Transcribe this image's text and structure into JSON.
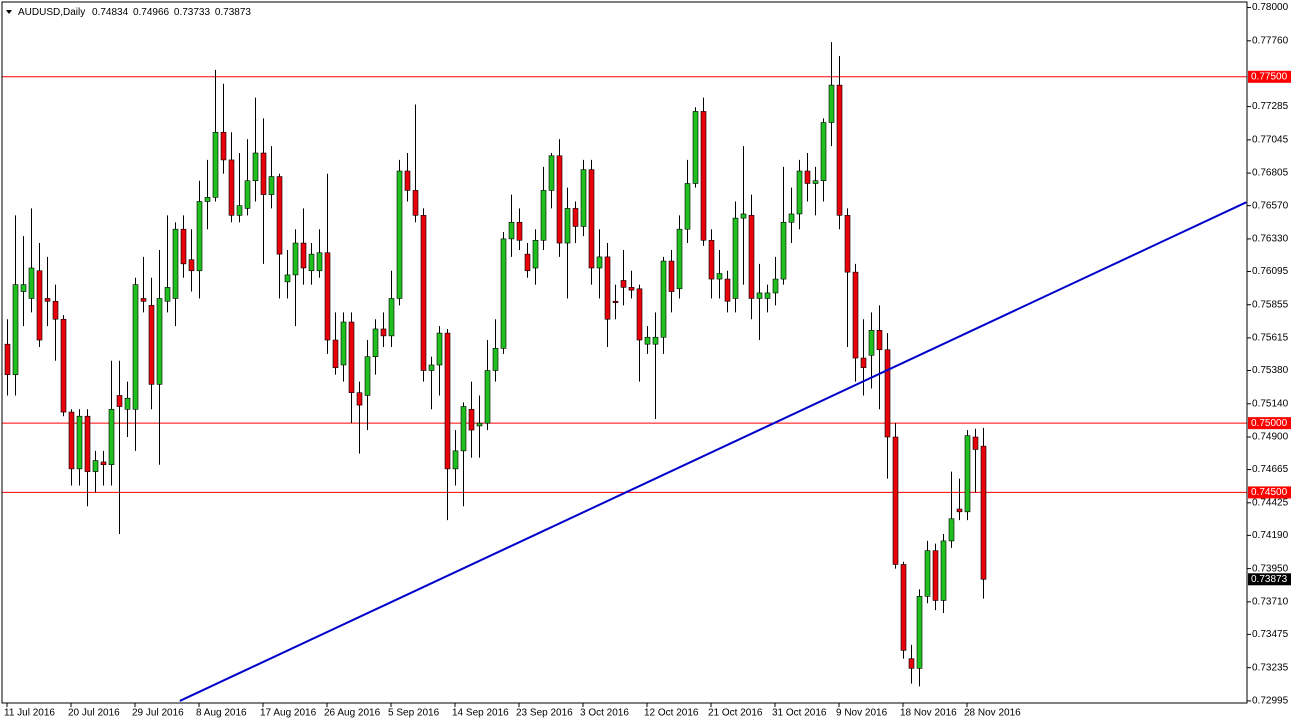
{
  "chart_data": {
    "type": "candlestick",
    "title": "AUDUSD,Daily",
    "categories": [
      "11 Jul 2016",
      null,
      null,
      null,
      null,
      null,
      null,
      null,
      "20 Jul 2016",
      null,
      null,
      null,
      null,
      null,
      null,
      null,
      "29 Jul 2016",
      null,
      null,
      null,
      null,
      null,
      null,
      null,
      "8 Aug 2016",
      null,
      null,
      null,
      null,
      null,
      null,
      null,
      "17 Aug 2016",
      null,
      null,
      null,
      null,
      null,
      null,
      null,
      "26 Aug 2016",
      null,
      null,
      null,
      null,
      null,
      null,
      null,
      "5 Sep 2016",
      null,
      null,
      null,
      null,
      null,
      null,
      null,
      "14 Sep 2016",
      null,
      null,
      null,
      null,
      null,
      null,
      null,
      "23 Sep 2016",
      null,
      null,
      null,
      null,
      null,
      null,
      null,
      "3 Oct 2016",
      null,
      null,
      null,
      null,
      null,
      null,
      null,
      "12 Oct 2016",
      null,
      null,
      null,
      null,
      null,
      null,
      null,
      "21 Oct 2016",
      null,
      null,
      null,
      null,
      null,
      null,
      null,
      "31 Oct 2016",
      null,
      null,
      null,
      null,
      null,
      null,
      null,
      "9 Nov 2016",
      null,
      null,
      null,
      null,
      null,
      null,
      null,
      "18 Nov 2016",
      null,
      null,
      null,
      null,
      null,
      null,
      null,
      "28 Nov 2016",
      null,
      null
    ],
    "open": [
      0.7557,
      0.7535,
      0.7595,
      0.759,
      0.761,
      0.759,
      0.7588,
      0.7575,
      0.7508,
      0.7467,
      0.7505,
      0.7465,
      0.7472,
      0.747,
      0.752,
      0.751,
      0.751,
      0.759,
      0.7585,
      0.7528,
      0.7588,
      0.759,
      0.764,
      0.7618,
      0.761,
      0.766,
      0.7663,
      0.771,
      0.769,
      0.765,
      0.7655,
      0.7675,
      0.7695,
      0.7665,
      0.7678,
      0.7602,
      0.7607,
      0.763,
      0.761,
      0.761,
      0.7623,
      0.756,
      0.7542,
      0.7573,
      0.7522,
      0.752,
      0.7548,
      0.7568,
      0.7563,
      0.759,
      0.7682,
      0.7668,
      0.765,
      0.7538,
      0.7542,
      0.7565,
      0.7467,
      0.748,
      0.751,
      0.7498,
      0.75,
      0.7538,
      0.7554,
      0.7633,
      0.7645,
      0.7622,
      0.7612,
      0.7632,
      0.7668,
      0.7693,
      0.763,
      0.7655,
      0.7642,
      0.7683,
      0.7612,
      0.762,
      0.7588,
      0.7603,
      0.7598,
      0.7597,
      0.7557,
      0.7557,
      0.7562,
      0.7617,
      0.7597,
      0.764,
      0.7673,
      0.7725,
      0.7632,
      0.7604,
      0.7604,
      0.759,
      0.7648,
      0.765,
      0.759,
      0.759,
      0.7594,
      0.7604,
      0.7645,
      0.7651,
      0.7682,
      0.7673,
      0.7675,
      0.7717,
      0.7744,
      0.765,
      0.7609,
      0.7547,
      0.7549,
      0.7567,
      0.7553,
      0.749,
      0.7398,
      0.733,
      0.7323,
      0.7375,
      0.7408,
      0.7372,
      0.7415,
      0.7438,
      0.7436,
      0.749,
      0.74834
    ],
    "high": [
      0.7575,
      0.765,
      0.7635,
      0.7655,
      0.763,
      0.762,
      0.76,
      0.7578,
      0.751,
      0.751,
      0.751,
      0.748,
      0.748,
      0.7545,
      0.7545,
      0.753,
      0.7605,
      0.762,
      0.7605,
      0.7625,
      0.765,
      0.7645,
      0.765,
      0.764,
      0.7675,
      0.769,
      0.7755,
      0.7745,
      0.771,
      0.7695,
      0.7705,
      0.7735,
      0.772,
      0.77,
      0.768,
      0.7625,
      0.764,
      0.7655,
      0.763,
      0.764,
      0.768,
      0.758,
      0.758,
      0.758,
      0.753,
      0.756,
      0.7575,
      0.758,
      0.761,
      0.769,
      0.7695,
      0.773,
      0.7655,
      0.7548,
      0.757,
      0.7568,
      0.7495,
      0.7515,
      0.753,
      0.752,
      0.756,
      0.7575,
      0.7638,
      0.7665,
      0.7655,
      0.763,
      0.764,
      0.7685,
      0.7695,
      0.7705,
      0.767,
      0.766,
      0.769,
      0.769,
      0.764,
      0.763,
      0.76,
      0.7625,
      0.761,
      0.76,
      0.757,
      0.758,
      0.762,
      0.7625,
      0.765,
      0.769,
      0.7728,
      0.7735,
      0.764,
      0.7625,
      0.761,
      0.766,
      0.77,
      0.7665,
      0.7615,
      0.76,
      0.762,
      0.7685,
      0.767,
      0.769,
      0.7695,
      0.7685,
      0.772,
      0.7775,
      0.7765,
      0.7655,
      0.7615,
      0.7575,
      0.758,
      0.7585,
      0.7565,
      0.75,
      0.74,
      0.734,
      0.738,
      0.7415,
      0.7413,
      0.742,
      0.7465,
      0.746,
      0.7495,
      0.7496,
      0.74966
    ],
    "low": [
      0.752,
      0.752,
      0.757,
      0.758,
      0.7555,
      0.757,
      0.7545,
      0.7505,
      0.7455,
      0.7455,
      0.744,
      0.745,
      0.7455,
      0.7455,
      0.742,
      0.749,
      0.748,
      0.758,
      0.751,
      0.747,
      0.758,
      0.757,
      0.7605,
      0.7595,
      0.759,
      0.764,
      0.766,
      0.768,
      0.7645,
      0.7645,
      0.765,
      0.766,
      0.7615,
      0.7655,
      0.759,
      0.759,
      0.757,
      0.76,
      0.76,
      0.7605,
      0.755,
      0.7535,
      0.753,
      0.75,
      0.7478,
      0.7495,
      0.7535,
      0.7555,
      0.7555,
      0.7585,
      0.766,
      0.7645,
      0.753,
      0.751,
      0.752,
      0.743,
      0.7455,
      0.744,
      0.7475,
      0.7475,
      0.7495,
      0.753,
      0.755,
      0.762,
      0.7625,
      0.7605,
      0.76,
      0.7625,
      0.7655,
      0.762,
      0.759,
      0.763,
      0.7635,
      0.76,
      0.759,
      0.7555,
      0.7575,
      0.7585,
      0.759,
      0.753,
      0.755,
      0.7503,
      0.755,
      0.758,
      0.759,
      0.763,
      0.767,
      0.7628,
      0.759,
      0.759,
      0.758,
      0.758,
      0.76,
      0.7575,
      0.756,
      0.758,
      0.7585,
      0.76,
      0.763,
      0.764,
      0.766,
      0.765,
      0.766,
      0.77,
      0.764,
      0.7555,
      0.753,
      0.752,
      0.7525,
      0.751,
      0.746,
      0.7395,
      0.733,
      0.7312,
      0.731,
      0.737,
      0.7365,
      0.7363,
      0.741,
      0.743,
      0.743,
      0.745,
      0.73733
    ],
    "close": [
      0.7535,
      0.76,
      0.76,
      0.7612,
      0.756,
      0.7588,
      0.7575,
      0.7508,
      0.7467,
      0.7505,
      0.7465,
      0.7473,
      0.747,
      0.751,
      0.7512,
      0.7518,
      0.76,
      0.7588,
      0.7528,
      0.759,
      0.7598,
      0.764,
      0.7615,
      0.761,
      0.766,
      0.7663,
      0.771,
      0.769,
      0.765,
      0.7657,
      0.7675,
      0.7695,
      0.7665,
      0.7678,
      0.7622,
      0.7607,
      0.763,
      0.7612,
      0.7622,
      0.7623,
      0.756,
      0.754,
      0.7573,
      0.7522,
      0.7513,
      0.7548,
      0.7568,
      0.7563,
      0.759,
      0.7682,
      0.7668,
      0.765,
      0.7538,
      0.7542,
      0.7565,
      0.7467,
      0.748,
      0.7512,
      0.7495,
      0.75,
      0.7538,
      0.7554,
      0.7633,
      0.7645,
      0.7632,
      0.761,
      0.7632,
      0.7668,
      0.7693,
      0.763,
      0.7655,
      0.7642,
      0.7683,
      0.7612,
      0.762,
      0.7575,
      0.7587,
      0.7598,
      0.7596,
      0.756,
      0.7562,
      0.7562,
      0.7617,
      0.7595,
      0.764,
      0.7673,
      0.7725,
      0.7632,
      0.7604,
      0.7608,
      0.7588,
      0.7648,
      0.7651,
      0.759,
      0.7594,
      0.7594,
      0.7604,
      0.7645,
      0.7651,
      0.7682,
      0.7673,
      0.7675,
      0.7717,
      0.7744,
      0.765,
      0.7609,
      0.7547,
      0.754,
      0.7567,
      0.7553,
      0.749,
      0.7398,
      0.7336,
      0.7323,
      0.7375,
      0.7408,
      0.7372,
      0.7415,
      0.7431,
      0.7436,
      0.7491,
      0.7481,
      0.73873
    ],
    "up_color": "#1fbf1f",
    "down_color": "#e8000b",
    "wick_color": "#000000",
    "ylim": [
      0.7298,
      0.7804
    ],
    "yticks": [
      {
        "value": 0.78,
        "label": "0.78000"
      },
      {
        "value": 0.7776,
        "label": "0.77760"
      },
      {
        "value": 0.77285,
        "label": "0.77285"
      },
      {
        "value": 0.77045,
        "label": "0.77045"
      },
      {
        "value": 0.76805,
        "label": "0.76805"
      },
      {
        "value": 0.7657,
        "label": "0.76570"
      },
      {
        "value": 0.7633,
        "label": "0.76330"
      },
      {
        "value": 0.76095,
        "label": "0.76095"
      },
      {
        "value": 0.75855,
        "label": "0.75855"
      },
      {
        "value": 0.75615,
        "label": "0.75615"
      },
      {
        "value": 0.7538,
        "label": "0.75380"
      },
      {
        "value": 0.7514,
        "label": "0.75140"
      },
      {
        "value": 0.749,
        "label": "0.74900"
      },
      {
        "value": 0.74665,
        "label": "0.74665"
      },
      {
        "value": 0.74425,
        "label": "0.74425"
      },
      {
        "value": 0.7419,
        "label": "0.74190"
      },
      {
        "value": 0.7395,
        "label": "0.73950"
      },
      {
        "value": 0.7371,
        "label": "0.73710"
      },
      {
        "value": 0.73475,
        "label": "0.73475"
      },
      {
        "value": 0.73235,
        "label": "0.73235"
      },
      {
        "value": 0.72995,
        "label": "0.72995"
      }
    ],
    "levels": [
      {
        "value": 0.775,
        "label": "0.77500"
      },
      {
        "value": 0.75,
        "label": "0.75000"
      },
      {
        "value": 0.745,
        "label": "0.74500"
      }
    ],
    "level_color": "#ff0000",
    "trendline": {
      "from": [
        21.6,
        0.72995
      ],
      "to": [
        154.9,
        0.76594
      ],
      "color": "#0000cc"
    }
  }
}
